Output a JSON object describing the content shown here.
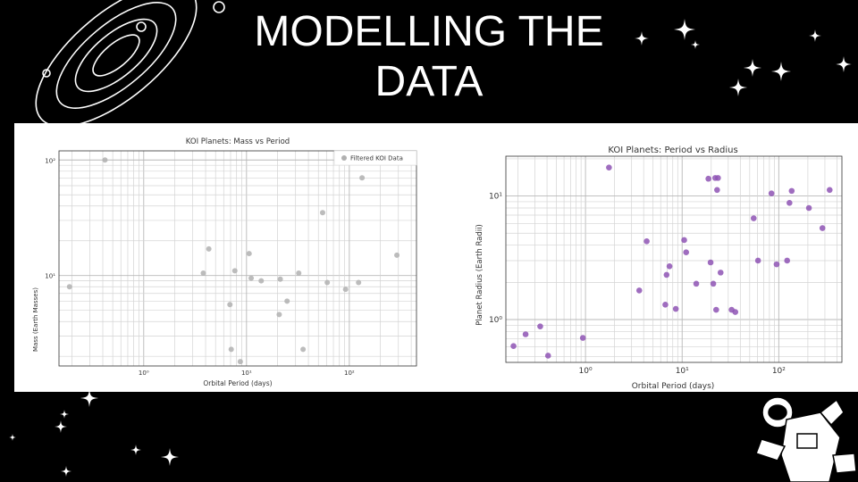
{
  "slide": {
    "title_line1": "MODELLING THE",
    "title_line2": "DATA"
  },
  "decor": {
    "top_left": "orbit-rings",
    "stars": "sparkle-stars",
    "bottom_right": "astronaut"
  },
  "colors": {
    "background": "#000000",
    "title": "#ffffff",
    "left_points": "#b0b0b0",
    "right_points": "#8e54b4"
  },
  "chart_data": [
    {
      "type": "scatter",
      "title": "KOI Planets: Mass vs Period",
      "xlabel": "Orbital Period (days)",
      "ylabel": "Mass (Earth Masses)",
      "xscale": "log",
      "yscale": "log",
      "xlim": [
        0.15,
        450
      ],
      "ylim": [
        1.65,
        120
      ],
      "xticks": [
        {
          "v": 1,
          "label": "10⁰"
        },
        {
          "v": 10,
          "label": "10¹"
        },
        {
          "v": 100,
          "label": "10²"
        }
      ],
      "yticks": [
        {
          "v": 10,
          "label": "10¹"
        },
        {
          "v": 100,
          "label": "10²"
        }
      ],
      "grid": true,
      "legend": {
        "position": "top-right",
        "entries": [
          "Filtered KOI Data"
        ]
      },
      "series": [
        {
          "name": "Filtered KOI Data",
          "color": "#b0b0b0",
          "points": [
            [
              0.19,
              8.0
            ],
            [
              0.42,
              100
            ],
            [
              3.8,
              10.5
            ],
            [
              4.3,
              17
            ],
            [
              6.9,
              5.6
            ],
            [
              7.1,
              2.3
            ],
            [
              7.7,
              11
            ],
            [
              8.7,
              1.8
            ],
            [
              10.6,
              15.5
            ],
            [
              11.1,
              9.5
            ],
            [
              13.9,
              9.0
            ],
            [
              20.8,
              4.6
            ],
            [
              21.3,
              9.3
            ],
            [
              24.8,
              6.0
            ],
            [
              32.2,
              10.5
            ],
            [
              35.5,
              2.3
            ],
            [
              55.0,
              35.0
            ],
            [
              61.0,
              8.7
            ],
            [
              92.0,
              7.6
            ],
            [
              123.0,
              8.7
            ],
            [
              133.0,
              70.0
            ],
            [
              290.0,
              15.0
            ]
          ]
        }
      ]
    },
    {
      "type": "scatter",
      "title": "KOI Planets: Period vs Radius",
      "xlabel": "Orbital Period (days)",
      "ylabel": "Planet Radius (Earth Radii)",
      "xscale": "log",
      "yscale": "log",
      "xlim": [
        0.15,
        450
      ],
      "ylim": [
        0.45,
        21
      ],
      "xticks": [
        {
          "v": 1,
          "label": "10⁰"
        },
        {
          "v": 10,
          "label": "10¹"
        },
        {
          "v": 100,
          "label": "10²"
        }
      ],
      "yticks": [
        {
          "v": 1,
          "label": "10⁰"
        },
        {
          "v": 10,
          "label": "10¹"
        }
      ],
      "grid": true,
      "series": [
        {
          "color": "#8e54b4",
          "points": [
            [
              0.18,
              0.61
            ],
            [
              0.24,
              0.76
            ],
            [
              0.34,
              0.88
            ],
            [
              0.41,
              0.51
            ],
            [
              0.94,
              0.71
            ],
            [
              1.75,
              17.0
            ],
            [
              3.6,
              1.72
            ],
            [
              4.3,
              4.3
            ],
            [
              6.7,
              1.32
            ],
            [
              6.9,
              2.3
            ],
            [
              7.4,
              2.7
            ],
            [
              8.6,
              1.22
            ],
            [
              10.5,
              4.4
            ],
            [
              11.0,
              3.5
            ],
            [
              14.0,
              1.95
            ],
            [
              18.7,
              13.8
            ],
            [
              19.7,
              2.9
            ],
            [
              21.0,
              1.95
            ],
            [
              22.0,
              14.0
            ],
            [
              22.5,
              1.2
            ],
            [
              23.0,
              11.2
            ],
            [
              23.5,
              14.0
            ],
            [
              25.0,
              2.4
            ],
            [
              32.5,
              1.2
            ],
            [
              35.5,
              1.15
            ],
            [
              55.0,
              6.6
            ],
            [
              61.0,
              3.0
            ],
            [
              84.0,
              10.5
            ],
            [
              95.0,
              2.8
            ],
            [
              122.0,
              3.0
            ],
            [
              129.0,
              8.8
            ],
            [
              136.0,
              11.0
            ],
            [
              205.0,
              8.0
            ],
            [
              283.0,
              5.5
            ],
            [
              336.0,
              11.2
            ]
          ]
        }
      ]
    }
  ]
}
